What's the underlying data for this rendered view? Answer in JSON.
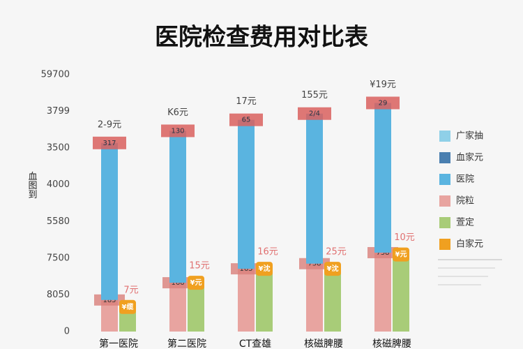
{
  "chart_data": {
    "type": "bar",
    "title": "医院检查费用对比表",
    "y_label": "血图到",
    "categories": [
      "第一医院",
      "第二医院",
      "CT查雄",
      "核磁脾腰",
      "核磁脾腰"
    ],
    "series": [
      {
        "color": "#e8a4a0",
        "stack": "a",
        "values": [
          0.86,
          1.33,
          1.71,
          1.85,
          2.15
        ]
      },
      {
        "color": "#5ab4e0",
        "stack": "a",
        "values": [
          4.28,
          4.14,
          4.06,
          4.09,
          4.08
        ]
      },
      {
        "color": "#a8cc78",
        "stack": "b",
        "values": [
          0.67,
          1.33,
          1.71,
          1.71,
          2.1
        ]
      }
    ],
    "top_labels": [
      "2-9元",
      "K6元",
      "17元",
      "155元",
      "¥19元"
    ],
    "cap_labels": [
      "317",
      "130",
      "65",
      "2/4",
      "29"
    ],
    "base_labels": [
      "185",
      "166",
      "165",
      "758",
      "758"
    ],
    "icon_labels": [
      "¥缆",
      "¥元",
      "¥沈",
      "¥沈",
      "¥元"
    ],
    "green_top_labels": [
      "7元",
      "15元",
      "16元",
      "25元",
      "10元"
    ],
    "legend": [
      {
        "name": "广家抽",
        "color": "#8fd0e8"
      },
      {
        "name": "血家元",
        "color": "#4a7fb0"
      },
      {
        "name": "医院",
        "color": "#5ab4e0"
      },
      {
        "name": "院粒",
        "color": "#e8a4a0"
      },
      {
        "name": "萱定",
        "color": "#a8cc78"
      },
      {
        "name": "白家元",
        "color": "#f0a020"
      }
    ],
    "ylim": [
      0,
      7
    ],
    "yticks": [
      {
        "value": 0,
        "label": "0"
      },
      {
        "value": 1,
        "label": "8050"
      },
      {
        "value": 2,
        "label": "7500"
      },
      {
        "value": 3,
        "label": "5580"
      },
      {
        "value": 4,
        "label": "4000"
      },
      {
        "value": 5,
        "label": "3500"
      },
      {
        "value": 6,
        "label": "3799"
      },
      {
        "value": 7,
        "label": "59700"
      }
    ],
    "grid": false
  }
}
